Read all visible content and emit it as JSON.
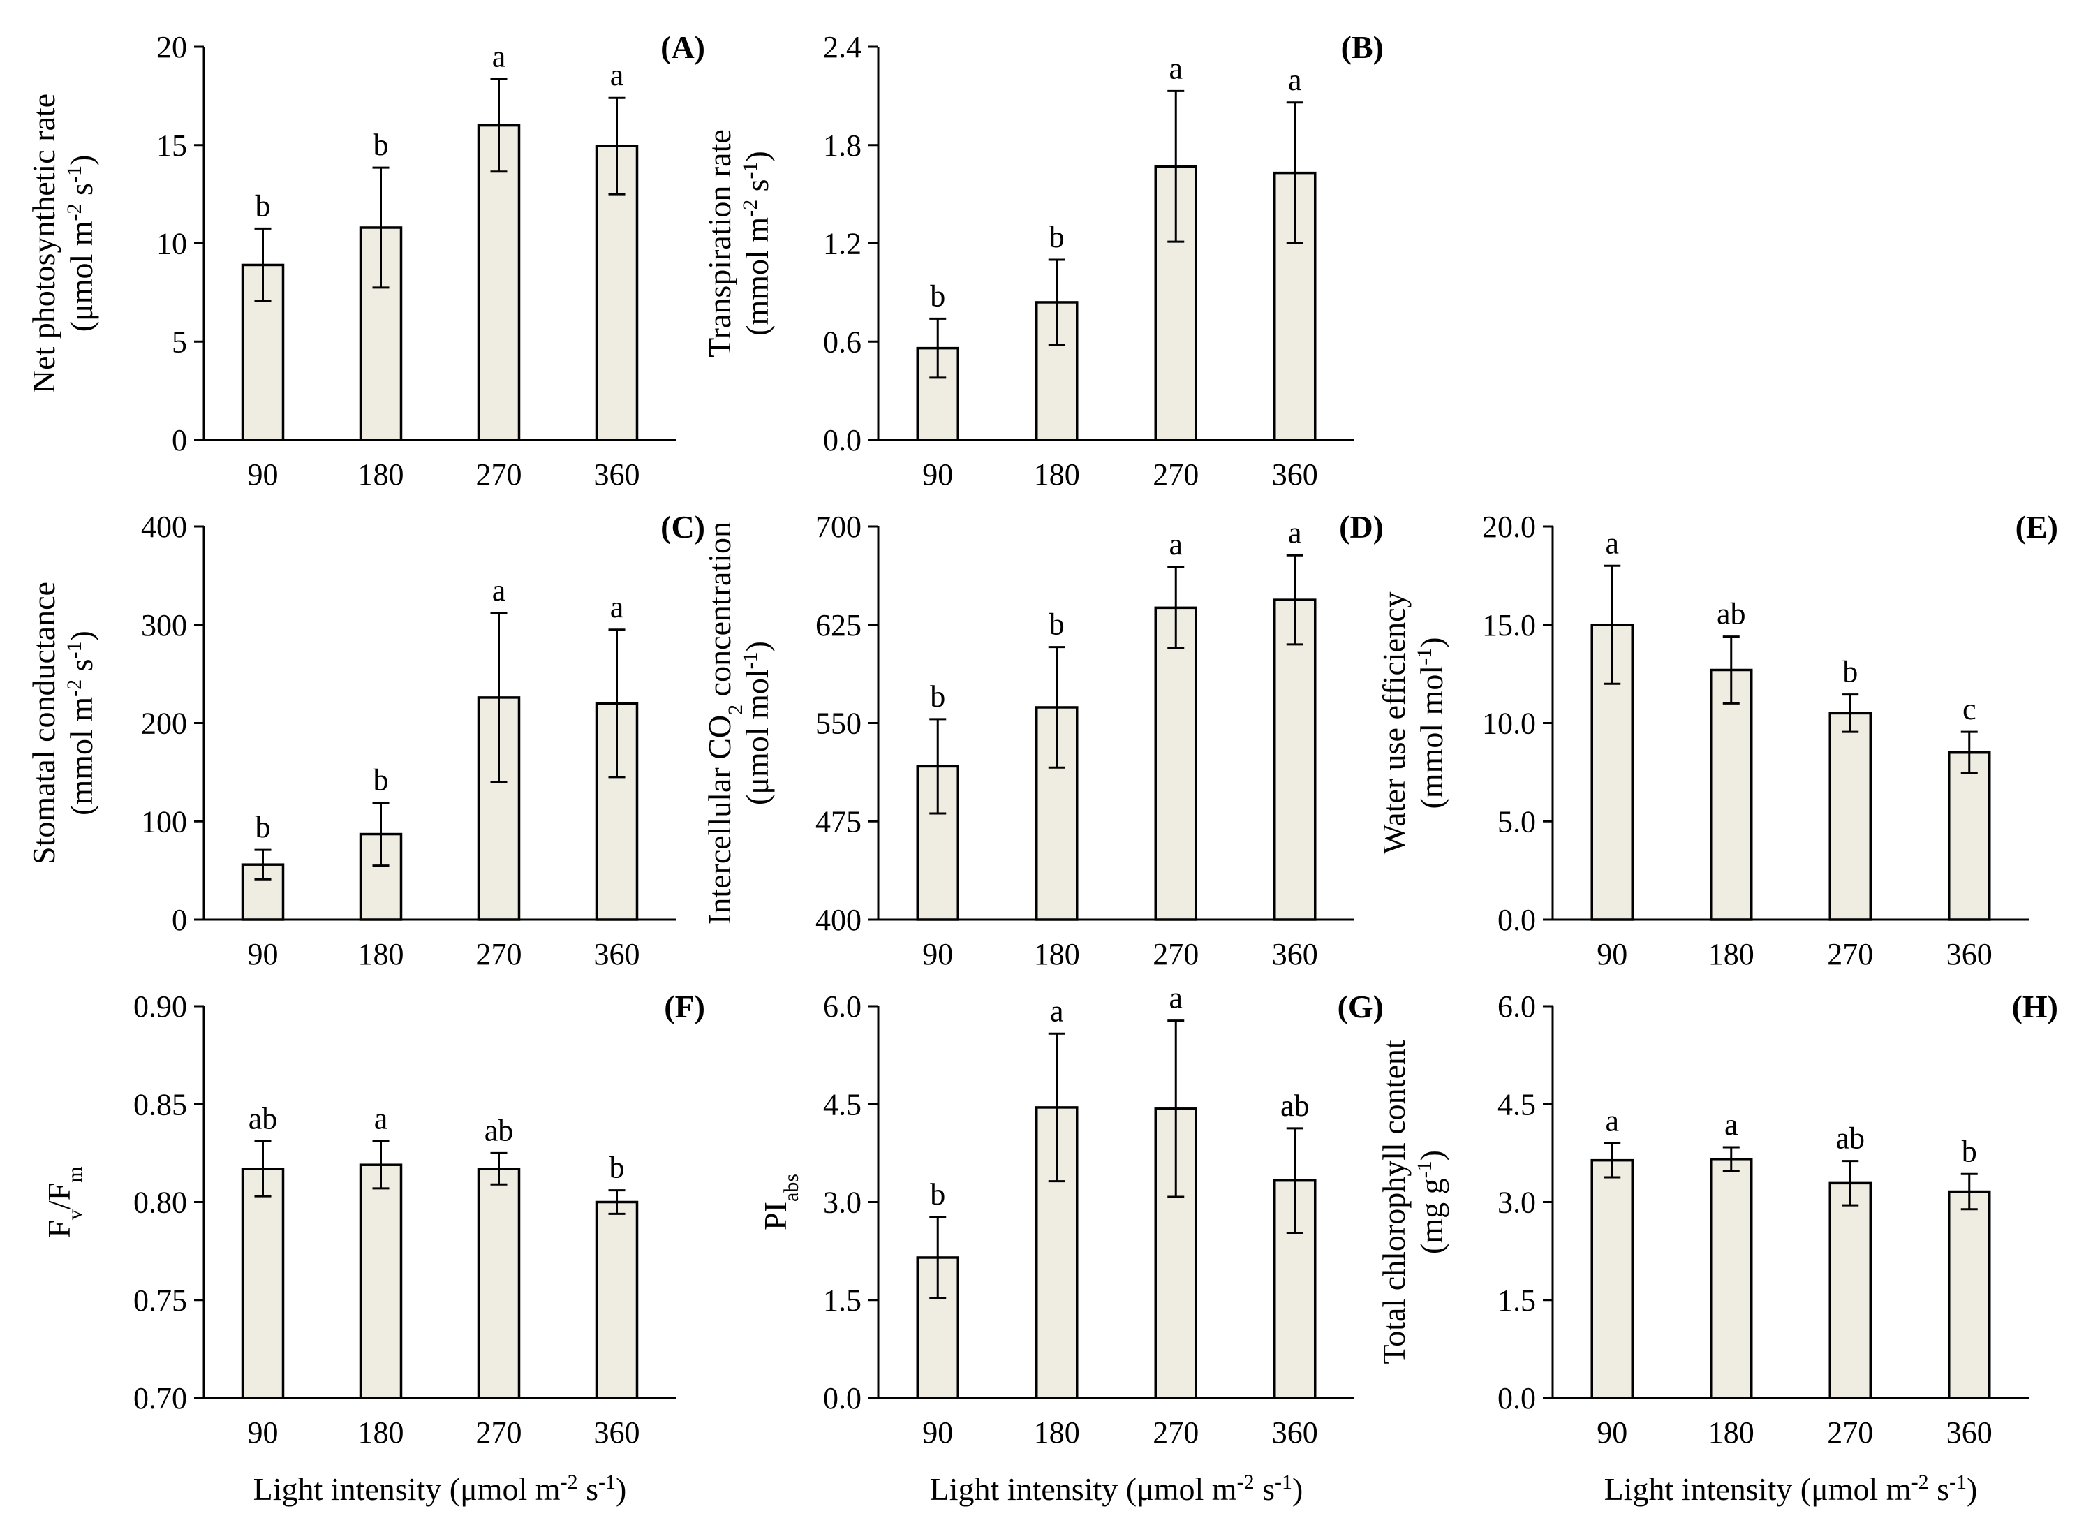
{
  "colors": {
    "bar_fill": "#efede2",
    "axis": "#000000"
  },
  "x_axis_label": {
    "text": "Light intensity (μmol m",
    "sup1": "-2",
    "mid": " s",
    "sup2": "-1",
    "end": ")"
  },
  "chart_data": [
    {
      "id": "A",
      "type": "bar",
      "panel_label": "(A)",
      "ylabel_lines": [
        {
          "text": "Net photosynthetic rate"
        },
        {
          "text": "(μmol m",
          "sup1": "-2",
          "mid": " s",
          "sup2": "-1",
          "end": ")"
        }
      ],
      "categories": [
        "90",
        "180",
        "270",
        "360"
      ],
      "values": [
        8.9,
        10.8,
        16.0,
        14.95
      ],
      "errors": [
        1.85,
        3.05,
        2.35,
        2.45
      ],
      "letters": [
        "b",
        "b",
        "a",
        "a"
      ],
      "ylim": [
        0,
        20
      ],
      "yticks": [
        "0",
        "5",
        "10",
        "15",
        "20"
      ],
      "show_xlabel": false
    },
    {
      "id": "B",
      "type": "bar",
      "panel_label": "(B)",
      "ylabel_lines": [
        {
          "text": "Transpiration rate"
        },
        {
          "text": "(mmol m",
          "sup1": "-2",
          "mid": " s",
          "sup2": "-1",
          "end": ")"
        }
      ],
      "categories": [
        "90",
        "180",
        "270",
        "360"
      ],
      "values": [
        0.56,
        0.84,
        1.67,
        1.63
      ],
      "errors": [
        0.18,
        0.26,
        0.46,
        0.43
      ],
      "letters": [
        "b",
        "b",
        "a",
        "a"
      ],
      "ylim": [
        0,
        2.4
      ],
      "yticks": [
        "0.0",
        "0.6",
        "1.2",
        "1.8",
        "2.4"
      ],
      "show_xlabel": false
    },
    {
      "id": "C",
      "type": "bar",
      "panel_label": "(C)",
      "ylabel_lines": [
        {
          "text": "Stomatal conductance"
        },
        {
          "text": "(mmol m",
          "sup1": "-2",
          "mid": " s",
          "sup2": "-1",
          "end": ")"
        }
      ],
      "categories": [
        "90",
        "180",
        "270",
        "360"
      ],
      "values": [
        56,
        87,
        226,
        220
      ],
      "errors": [
        15,
        32,
        86,
        75
      ],
      "letters": [
        "b",
        "b",
        "a",
        "a"
      ],
      "ylim": [
        0,
        400
      ],
      "yticks": [
        "0",
        "100",
        "200",
        "300",
        "400"
      ],
      "show_xlabel": false
    },
    {
      "id": "D",
      "type": "bar",
      "panel_label": "(D)",
      "ylabel_lines": [
        {
          "text": "Intercellular CO",
          "sub": "2",
          "end": " concentration"
        },
        {
          "text": "(μmol mol",
          "sup1": "-1",
          "end": ")"
        }
      ],
      "categories": [
        "90",
        "180",
        "270",
        "360"
      ],
      "values": [
        517,
        562,
        638,
        644
      ],
      "errors": [
        36,
        46,
        31,
        34
      ],
      "letters": [
        "b",
        "b",
        "a",
        "a"
      ],
      "ylim": [
        400,
        700
      ],
      "yticks": [
        "400",
        "475",
        "550",
        "625",
        "700"
      ],
      "show_xlabel": false
    },
    {
      "id": "E",
      "type": "bar",
      "panel_label": "(E)",
      "ylabel_lines": [
        {
          "text": "Water use efficiency"
        },
        {
          "text": "(mmol mol",
          "sup1": "-1",
          "end": ")"
        }
      ],
      "categories": [
        "90",
        "180",
        "270",
        "360"
      ],
      "values": [
        15.0,
        12.7,
        10.5,
        8.5
      ],
      "errors": [
        3.0,
        1.7,
        0.95,
        1.05
      ],
      "letters": [
        "a",
        "ab",
        "b",
        "c"
      ],
      "ylim": [
        0,
        20
      ],
      "yticks": [
        "0.0",
        "5.0",
        "10.0",
        "15.0",
        "20.0"
      ],
      "show_xlabel": false
    },
    {
      "id": "F",
      "type": "bar",
      "panel_label": "(F)",
      "ylabel_lines": [
        {
          "text": "F",
          "sub": "v",
          "mid": "/F",
          "sub2": "m"
        }
      ],
      "categories": [
        "90",
        "180",
        "270",
        "360"
      ],
      "values": [
        0.817,
        0.819,
        0.817,
        0.8
      ],
      "errors": [
        0.014,
        0.012,
        0.008,
        0.006
      ],
      "letters": [
        "ab",
        "a",
        "ab",
        "b"
      ],
      "ylim": [
        0.7,
        0.9
      ],
      "yticks": [
        "0.70",
        "0.75",
        "0.80",
        "0.85",
        "0.90"
      ],
      "show_xlabel": true
    },
    {
      "id": "G",
      "type": "bar",
      "panel_label": "(G)",
      "ylabel_lines": [
        {
          "text": "PI",
          "sub": "abs"
        }
      ],
      "categories": [
        "90",
        "180",
        "270",
        "360"
      ],
      "values": [
        2.15,
        4.45,
        4.43,
        3.33
      ],
      "errors": [
        0.62,
        1.13,
        1.35,
        0.8
      ],
      "letters": [
        "b",
        "a",
        "a",
        "ab"
      ],
      "ylim": [
        0,
        6.0
      ],
      "yticks": [
        "0.0",
        "1.5",
        "3.0",
        "4.5",
        "6.0"
      ],
      "show_xlabel": true
    },
    {
      "id": "H",
      "type": "bar",
      "panel_label": "(H)",
      "ylabel_lines": [
        {
          "text": "Total chlorophyll content"
        },
        {
          "text": "(mg g",
          "sup1": "-1",
          "end": ")"
        }
      ],
      "categories": [
        "90",
        "180",
        "270",
        "360"
      ],
      "values": [
        3.64,
        3.66,
        3.29,
        3.16
      ],
      "errors": [
        0.26,
        0.18,
        0.34,
        0.27
      ],
      "letters": [
        "a",
        "a",
        "ab",
        "b"
      ],
      "ylim": [
        0,
        6.0
      ],
      "yticks": [
        "0.0",
        "1.5",
        "3.0",
        "4.5",
        "6.0"
      ],
      "show_xlabel": true
    }
  ]
}
